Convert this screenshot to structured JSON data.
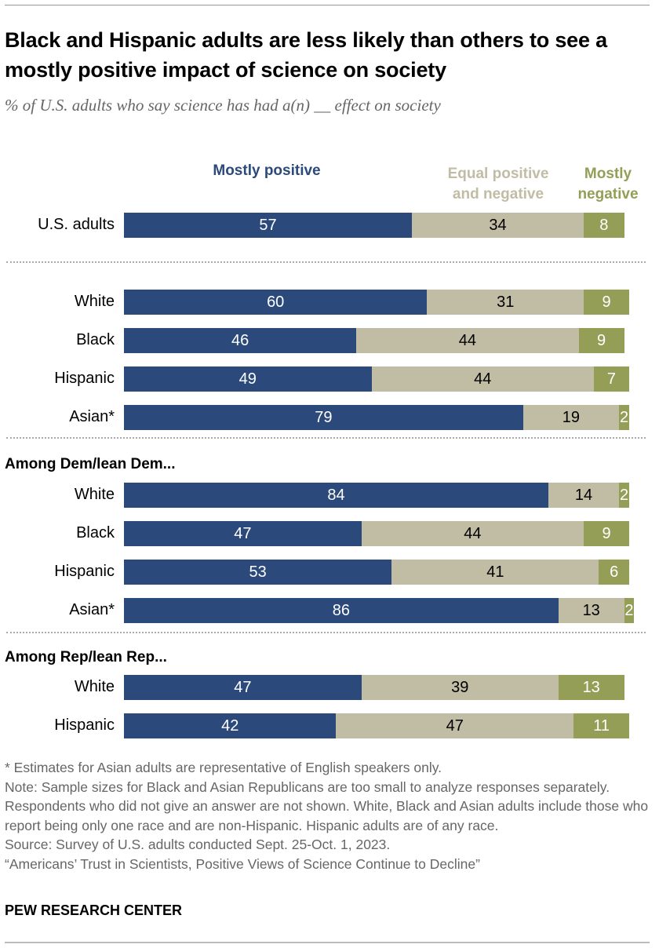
{
  "title": "Black and Hispanic adults are less likely than others to see a mostly positive impact of science on society",
  "subtitle": "% of U.S. adults who say science has had a(n) __ effect on society",
  "colors": {
    "mostly_positive": "#2b4a7b",
    "equal": "#c1bca4",
    "mostly_negative": "#949e56"
  },
  "chart_data": {
    "type": "bar",
    "orientation": "horizontal",
    "stacked": true,
    "xlim": [
      0,
      100
    ],
    "legend_placement": "top",
    "series": [
      {
        "name": "Mostly positive"
      },
      {
        "name": "Equal positive and negative"
      },
      {
        "name": "Mostly negative"
      }
    ],
    "legend": [
      "Mostly positive",
      "Equal positive and negative",
      "Mostly negative"
    ],
    "sections": [
      "",
      "",
      "Among Dem/lean Dem...",
      "Among Rep/lean Rep..."
    ],
    "rows": [
      {
        "label": "U.S. adults",
        "section": 0,
        "values": [
          57,
          34,
          8
        ]
      },
      {
        "label": "White",
        "section": 1,
        "values": [
          60,
          31,
          9
        ]
      },
      {
        "label": "Black",
        "section": 1,
        "values": [
          46,
          44,
          9
        ]
      },
      {
        "label": "Hispanic",
        "section": 1,
        "values": [
          49,
          44,
          7
        ]
      },
      {
        "label": "Asian*",
        "section": 1,
        "values": [
          79,
          19,
          2
        ]
      },
      {
        "label": "White",
        "section": 2,
        "values": [
          84,
          14,
          2
        ]
      },
      {
        "label": "Black",
        "section": 2,
        "values": [
          47,
          44,
          9
        ]
      },
      {
        "label": "Hispanic",
        "section": 2,
        "values": [
          53,
          41,
          6
        ]
      },
      {
        "label": "Asian*",
        "section": 2,
        "values": [
          86,
          13,
          2
        ]
      },
      {
        "label": "White",
        "section": 3,
        "values": [
          47,
          39,
          13
        ]
      },
      {
        "label": "Hispanic",
        "section": 3,
        "values": [
          42,
          47,
          11
        ]
      }
    ]
  },
  "notes": [
    "* Estimates for Asian adults are representative of English speakers only.",
    "Note: Sample sizes for Black and Asian Republicans are too small to analyze responses separately. Respondents who did not give an answer are not shown. White, Black and Asian adults include those who report being only one race and are non-Hispanic. Hispanic adults are of any race.",
    "Source: Survey of U.S. adults conducted Sept. 25-Oct. 1, 2023.",
    "“Americans’ Trust in Scientists, Positive Views of Science Continue to Decline”"
  ],
  "brand": "PEW RESEARCH CENTER"
}
